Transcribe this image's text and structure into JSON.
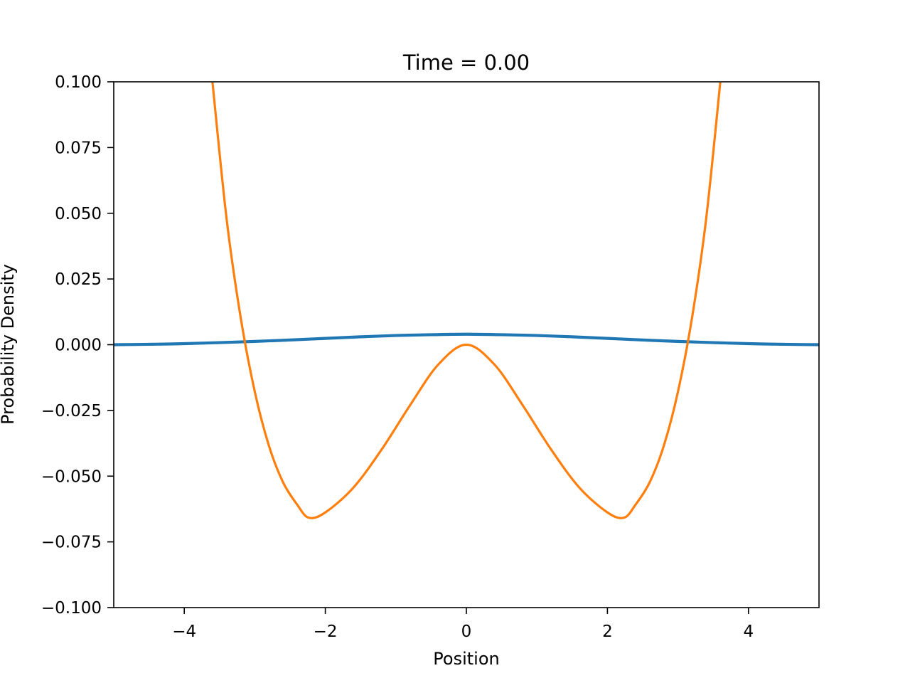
{
  "chart_data": {
    "type": "line",
    "title": "Time = 0.00",
    "xlabel": "Position",
    "ylabel": "Probability Density",
    "xlim": [
      -5,
      5
    ],
    "ylim": [
      -0.1,
      0.1
    ],
    "x_ticks": [
      -4,
      -2,
      0,
      2,
      4
    ],
    "x_tick_labels": [
      "−4",
      "−2",
      "0",
      "2",
      "4"
    ],
    "y_ticks": [
      0.1,
      0.075,
      0.05,
      0.025,
      0.0,
      -0.025,
      -0.05,
      -0.075,
      -0.1
    ],
    "y_tick_labels": [
      "0.100",
      "0.075",
      "0.050",
      "0.025",
      "0.000",
      "−0.025",
      "−0.050",
      "−0.075",
      "−0.100"
    ],
    "grid": false,
    "series": [
      {
        "color": "#1f77b4",
        "x": [
          -5,
          -4.5,
          -4,
          -3.5,
          -3,
          -2.5,
          -2,
          -1.5,
          -1,
          -0.5,
          0,
          0.5,
          1,
          1.5,
          2,
          2.5,
          3,
          3.5,
          4,
          4.5,
          5
        ],
        "y": [
          0.0,
          0.00015,
          0.0004,
          0.0008,
          0.00125,
          0.0018,
          0.0024,
          0.003,
          0.0035,
          0.0038,
          0.004,
          0.0038,
          0.0035,
          0.003,
          0.0024,
          0.0018,
          0.00125,
          0.0008,
          0.0004,
          0.00015,
          0.0
        ]
      },
      {
        "color": "#ff7f0e",
        "x": [
          -3.6,
          -3.4,
          -3.2,
          -3.0,
          -2.8,
          -2.6,
          -2.4,
          -2.236,
          -2.0,
          -1.6,
          -1.2,
          -0.8,
          -0.4,
          0,
          0.4,
          0.8,
          1.2,
          1.6,
          2.0,
          2.236,
          2.4,
          2.6,
          2.8,
          3.0,
          3.2,
          3.4,
          3.6
        ],
        "y": [
          0.0998,
          0.0479,
          0.0103,
          -0.0179,
          -0.0384,
          -0.0523,
          -0.0608,
          -0.0658,
          -0.0638,
          -0.0543,
          -0.0398,
          -0.0231,
          -0.0076,
          0.0,
          -0.0076,
          -0.0231,
          -0.0398,
          -0.0543,
          -0.0638,
          -0.0658,
          -0.0608,
          -0.0523,
          -0.0384,
          -0.0179,
          0.0103,
          0.0479,
          0.0998
        ]
      }
    ]
  }
}
